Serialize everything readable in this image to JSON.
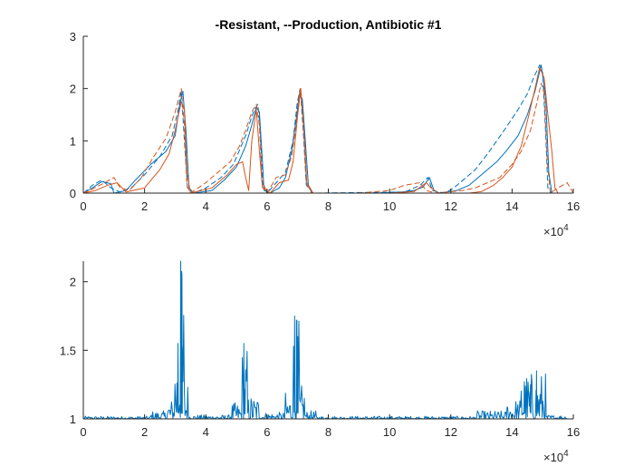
{
  "chart_data": [
    {
      "type": "line",
      "title": "-Resistant, --Production, Antibiotic #1",
      "xlabel": "",
      "ylabel": "",
      "xlim": [
        0,
        160000
      ],
      "ylim": [
        0,
        3
      ],
      "xticks": [
        0,
        2,
        4,
        6,
        8,
        10,
        12,
        14,
        16
      ],
      "yticks": [
        0,
        1,
        2,
        3
      ],
      "x_multiplier_base": "×10",
      "x_multiplier_exp": "4",
      "box": false,
      "grid": false,
      "series": [
        {
          "color": "#0072BD",
          "dash": "solid",
          "points": [
            [
              0,
              0
            ],
            [
              3000,
              0.1
            ],
            [
              6000,
              0.22
            ],
            [
              9000,
              0.18
            ],
            [
              10000,
              0
            ],
            [
              14000,
              0.05
            ],
            [
              17000,
              0.25
            ],
            [
              22000,
              0.55
            ],
            [
              27000,
              0.8
            ],
            [
              30000,
              1.1
            ],
            [
              31500,
              1.7
            ],
            [
              32500,
              1.95
            ],
            [
              33500,
              1.2
            ],
            [
              34500,
              0.1
            ],
            [
              36000,
              0
            ],
            [
              42000,
              0.05
            ],
            [
              46000,
              0.25
            ],
            [
              50000,
              0.5
            ],
            [
              53000,
              0.9
            ],
            [
              55000,
              1.3
            ],
            [
              56500,
              1.65
            ],
            [
              57500,
              1.55
            ],
            [
              58500,
              0.6
            ],
            [
              59000,
              0.05
            ],
            [
              61000,
              0
            ],
            [
              64000,
              0.1
            ],
            [
              66000,
              0.3
            ],
            [
              68000,
              0.8
            ],
            [
              69500,
              1.4
            ],
            [
              70500,
              1.9
            ],
            [
              71500,
              1.8
            ],
            [
              72500,
              1.0
            ],
            [
              73500,
              0.15
            ],
            [
              75000,
              0
            ],
            [
              95000,
              0
            ],
            [
              104000,
              0.02
            ],
            [
              108000,
              0.05
            ],
            [
              111000,
              0.12
            ],
            [
              113000,
              0.3
            ],
            [
              114500,
              0.05
            ],
            [
              116000,
              0
            ],
            [
              122000,
              0.05
            ],
            [
              126000,
              0.15
            ],
            [
              130000,
              0.35
            ],
            [
              135000,
              0.6
            ],
            [
              138000,
              0.8
            ],
            [
              142000,
              1.1
            ],
            [
              145000,
              1.5
            ],
            [
              147500,
              1.95
            ],
            [
              149500,
              2.45
            ],
            [
              151000,
              1.8
            ],
            [
              152000,
              0.4
            ],
            [
              153000,
              0
            ],
            [
              160000,
              0
            ]
          ]
        },
        {
          "color": "#0072BD",
          "dash": "dashed",
          "points": [
            [
              0,
              0
            ],
            [
              3000,
              0.15
            ],
            [
              6000,
              0.25
            ],
            [
              9000,
              0.1
            ],
            [
              12000,
              0.02
            ],
            [
              16000,
              0.12
            ],
            [
              20000,
              0.35
            ],
            [
              25000,
              0.7
            ],
            [
              29000,
              1.1
            ],
            [
              31000,
              1.6
            ],
            [
              32000,
              1.95
            ],
            [
              33000,
              1.0
            ],
            [
              34000,
              0.1
            ],
            [
              36000,
              0
            ],
            [
              40000,
              0.1
            ],
            [
              45000,
              0.3
            ],
            [
              49000,
              0.55
            ],
            [
              53000,
              1.1
            ],
            [
              55500,
              1.55
            ],
            [
              57000,
              1.7
            ],
            [
              57800,
              1.2
            ],
            [
              58500,
              0.2
            ],
            [
              60000,
              0
            ],
            [
              63000,
              0.2
            ],
            [
              66000,
              0.4
            ],
            [
              68500,
              1.0
            ],
            [
              69800,
              1.7
            ],
            [
              70800,
              2.0
            ],
            [
              71800,
              1.2
            ],
            [
              72800,
              0.15
            ],
            [
              75000,
              0
            ],
            [
              105000,
              0.02
            ],
            [
              110000,
              0.15
            ],
            [
              112500,
              0.3
            ],
            [
              114000,
              0.05
            ],
            [
              118000,
              0
            ],
            [
              121000,
              0.1
            ],
            [
              125000,
              0.3
            ],
            [
              128000,
              0.45
            ],
            [
              132000,
              0.75
            ],
            [
              135000,
              1.0
            ],
            [
              138000,
              1.25
            ],
            [
              142000,
              1.6
            ],
            [
              145000,
              1.9
            ],
            [
              147000,
              2.2
            ],
            [
              149000,
              2.45
            ],
            [
              150000,
              2.3
            ],
            [
              151000,
              1.1
            ],
            [
              151700,
              0.1
            ],
            [
              153000,
              0
            ],
            [
              160000,
              0
            ]
          ]
        },
        {
          "color": "#D95319",
          "dash": "solid",
          "points": [
            [
              0,
              0
            ],
            [
              4000,
              0.05
            ],
            [
              8000,
              0.15
            ],
            [
              11000,
              0.2
            ],
            [
              14000,
              0.02
            ],
            [
              20000,
              0.1
            ],
            [
              25000,
              0.45
            ],
            [
              28000,
              0.75
            ],
            [
              30000,
              1.2
            ],
            [
              32000,
              1.75
            ],
            [
              33000,
              1.6
            ],
            [
              33800,
              0.4
            ],
            [
              35000,
              0
            ],
            [
              42000,
              0.1
            ],
            [
              47000,
              0.35
            ],
            [
              50000,
              0.55
            ],
            [
              52000,
              0.6
            ],
            [
              53000,
              0.3
            ],
            [
              54000,
              0.05
            ],
            [
              55000,
              1.0
            ],
            [
              56500,
              1.6
            ],
            [
              57500,
              0.8
            ],
            [
              58500,
              0.1
            ],
            [
              61000,
              0
            ],
            [
              64000,
              0.2
            ],
            [
              67000,
              0.25
            ],
            [
              68500,
              0.6
            ],
            [
              70000,
              1.5
            ],
            [
              71000,
              2.0
            ],
            [
              72000,
              1.2
            ],
            [
              73000,
              0.2
            ],
            [
              75000,
              0
            ],
            [
              100000,
              0
            ],
            [
              108000,
              0.03
            ],
            [
              112000,
              0.2
            ],
            [
              113500,
              0.1
            ],
            [
              116000,
              0
            ],
            [
              126000,
              0
            ],
            [
              130000,
              0.03
            ],
            [
              134000,
              0.15
            ],
            [
              137000,
              0.3
            ],
            [
              140000,
              0.5
            ],
            [
              143000,
              0.9
            ],
            [
              145500,
              1.5
            ],
            [
              147500,
              2.0
            ],
            [
              149000,
              2.4
            ],
            [
              150500,
              2.2
            ],
            [
              151500,
              1.6
            ],
            [
              153000,
              0.8
            ],
            [
              154000,
              0.1
            ],
            [
              155000,
              0
            ],
            [
              160000,
              0
            ]
          ]
        },
        {
          "color": "#D95319",
          "dash": "dashed",
          "points": [
            [
              0,
              0
            ],
            [
              3000,
              0.08
            ],
            [
              7000,
              0.2
            ],
            [
              10000,
              0.3
            ],
            [
              12000,
              0.1
            ],
            [
              15000,
              0.05
            ],
            [
              19000,
              0.3
            ],
            [
              23000,
              0.7
            ],
            [
              27000,
              1.05
            ],
            [
              30000,
              1.55
            ],
            [
              32000,
              2.0
            ],
            [
              33000,
              1.3
            ],
            [
              33800,
              0.15
            ],
            [
              35000,
              0
            ],
            [
              40000,
              0.2
            ],
            [
              44000,
              0.4
            ],
            [
              48000,
              0.6
            ],
            [
              51000,
              0.9
            ],
            [
              53000,
              1.2
            ],
            [
              55000,
              1.55
            ],
            [
              56500,
              1.7
            ],
            [
              57500,
              1.3
            ],
            [
              58300,
              0.25
            ],
            [
              60000,
              0
            ],
            [
              63000,
              0.3
            ],
            [
              66000,
              0.35
            ],
            [
              68000,
              0.7
            ],
            [
              69500,
              1.3
            ],
            [
              70800,
              2.0
            ],
            [
              71800,
              1.4
            ],
            [
              72800,
              0.2
            ],
            [
              74500,
              0
            ],
            [
              90000,
              0
            ],
            [
              100000,
              0.05
            ],
            [
              105000,
              0.15
            ],
            [
              110000,
              0.2
            ],
            [
              112000,
              0.05
            ],
            [
              115000,
              0
            ],
            [
              124000,
              0.05
            ],
            [
              128000,
              0.1
            ],
            [
              132000,
              0.2
            ],
            [
              136000,
              0.3
            ],
            [
              140000,
              0.55
            ],
            [
              143000,
              0.8
            ],
            [
              146000,
              1.2
            ],
            [
              148000,
              1.7
            ],
            [
              149500,
              2.1
            ],
            [
              150500,
              1.9
            ],
            [
              151500,
              0.6
            ],
            [
              152500,
              0
            ],
            [
              155000,
              0.1
            ],
            [
              158000,
              0.2
            ],
            [
              160000,
              0
            ]
          ]
        }
      ]
    },
    {
      "type": "line",
      "title": "",
      "xlabel": "",
      "ylabel": "",
      "xlim": [
        0,
        160000
      ],
      "ylim": [
        1,
        2.15
      ],
      "xticks": [
        0,
        2,
        4,
        6,
        8,
        10,
        12,
        14,
        16
      ],
      "yticks": [
        1,
        1.5,
        2
      ],
      "x_multiplier_base": "×10",
      "x_multiplier_exp": "4",
      "box": false,
      "grid": false,
      "series": [
        {
          "color": "#0072BD",
          "dash": "solid",
          "bursts": [
            {
              "start": 0,
              "end": 22000,
              "amp": 0.02
            },
            {
              "start": 22000,
              "end": 27000,
              "amp": 0.06
            },
            {
              "start": 27000,
              "end": 29500,
              "amp": 0.15
            },
            {
              "start": 29500,
              "end": 31000,
              "amp": 0.6
            },
            {
              "start": 31000,
              "end": 32800,
              "amp": 1.15
            },
            {
              "start": 32800,
              "end": 34500,
              "amp": 0.3
            },
            {
              "start": 34500,
              "end": 48000,
              "amp": 0.03
            },
            {
              "start": 48000,
              "end": 51500,
              "amp": 0.12
            },
            {
              "start": 51500,
              "end": 53500,
              "amp": 0.55
            },
            {
              "start": 53500,
              "end": 58000,
              "amp": 0.18
            },
            {
              "start": 58000,
              "end": 66000,
              "amp": 0.05
            },
            {
              "start": 66000,
              "end": 68000,
              "amp": 0.2
            },
            {
              "start": 68000,
              "end": 70500,
              "amp": 0.75
            },
            {
              "start": 70500,
              "end": 72500,
              "amp": 0.25
            },
            {
              "start": 72500,
              "end": 76000,
              "amp": 0.06
            },
            {
              "start": 76000,
              "end": 128000,
              "amp": 0.02
            },
            {
              "start": 128000,
              "end": 138000,
              "amp": 0.06
            },
            {
              "start": 138000,
              "end": 143000,
              "amp": 0.15
            },
            {
              "start": 143000,
              "end": 151000,
              "amp": 0.35
            },
            {
              "start": 151000,
              "end": 160000,
              "amp": 0.03
            }
          ],
          "peaks": [
            [
              31800,
              2.15
            ],
            [
              32200,
              2.05
            ],
            [
              30900,
              1.55
            ],
            [
              52400,
              1.55
            ],
            [
              69000,
              1.75
            ],
            [
              69600,
              1.72
            ],
            [
              70000,
              1.6
            ],
            [
              144000,
              1.27
            ],
            [
              148000,
              1.35
            ],
            [
              146000,
              1.25
            ]
          ]
        }
      ]
    }
  ]
}
